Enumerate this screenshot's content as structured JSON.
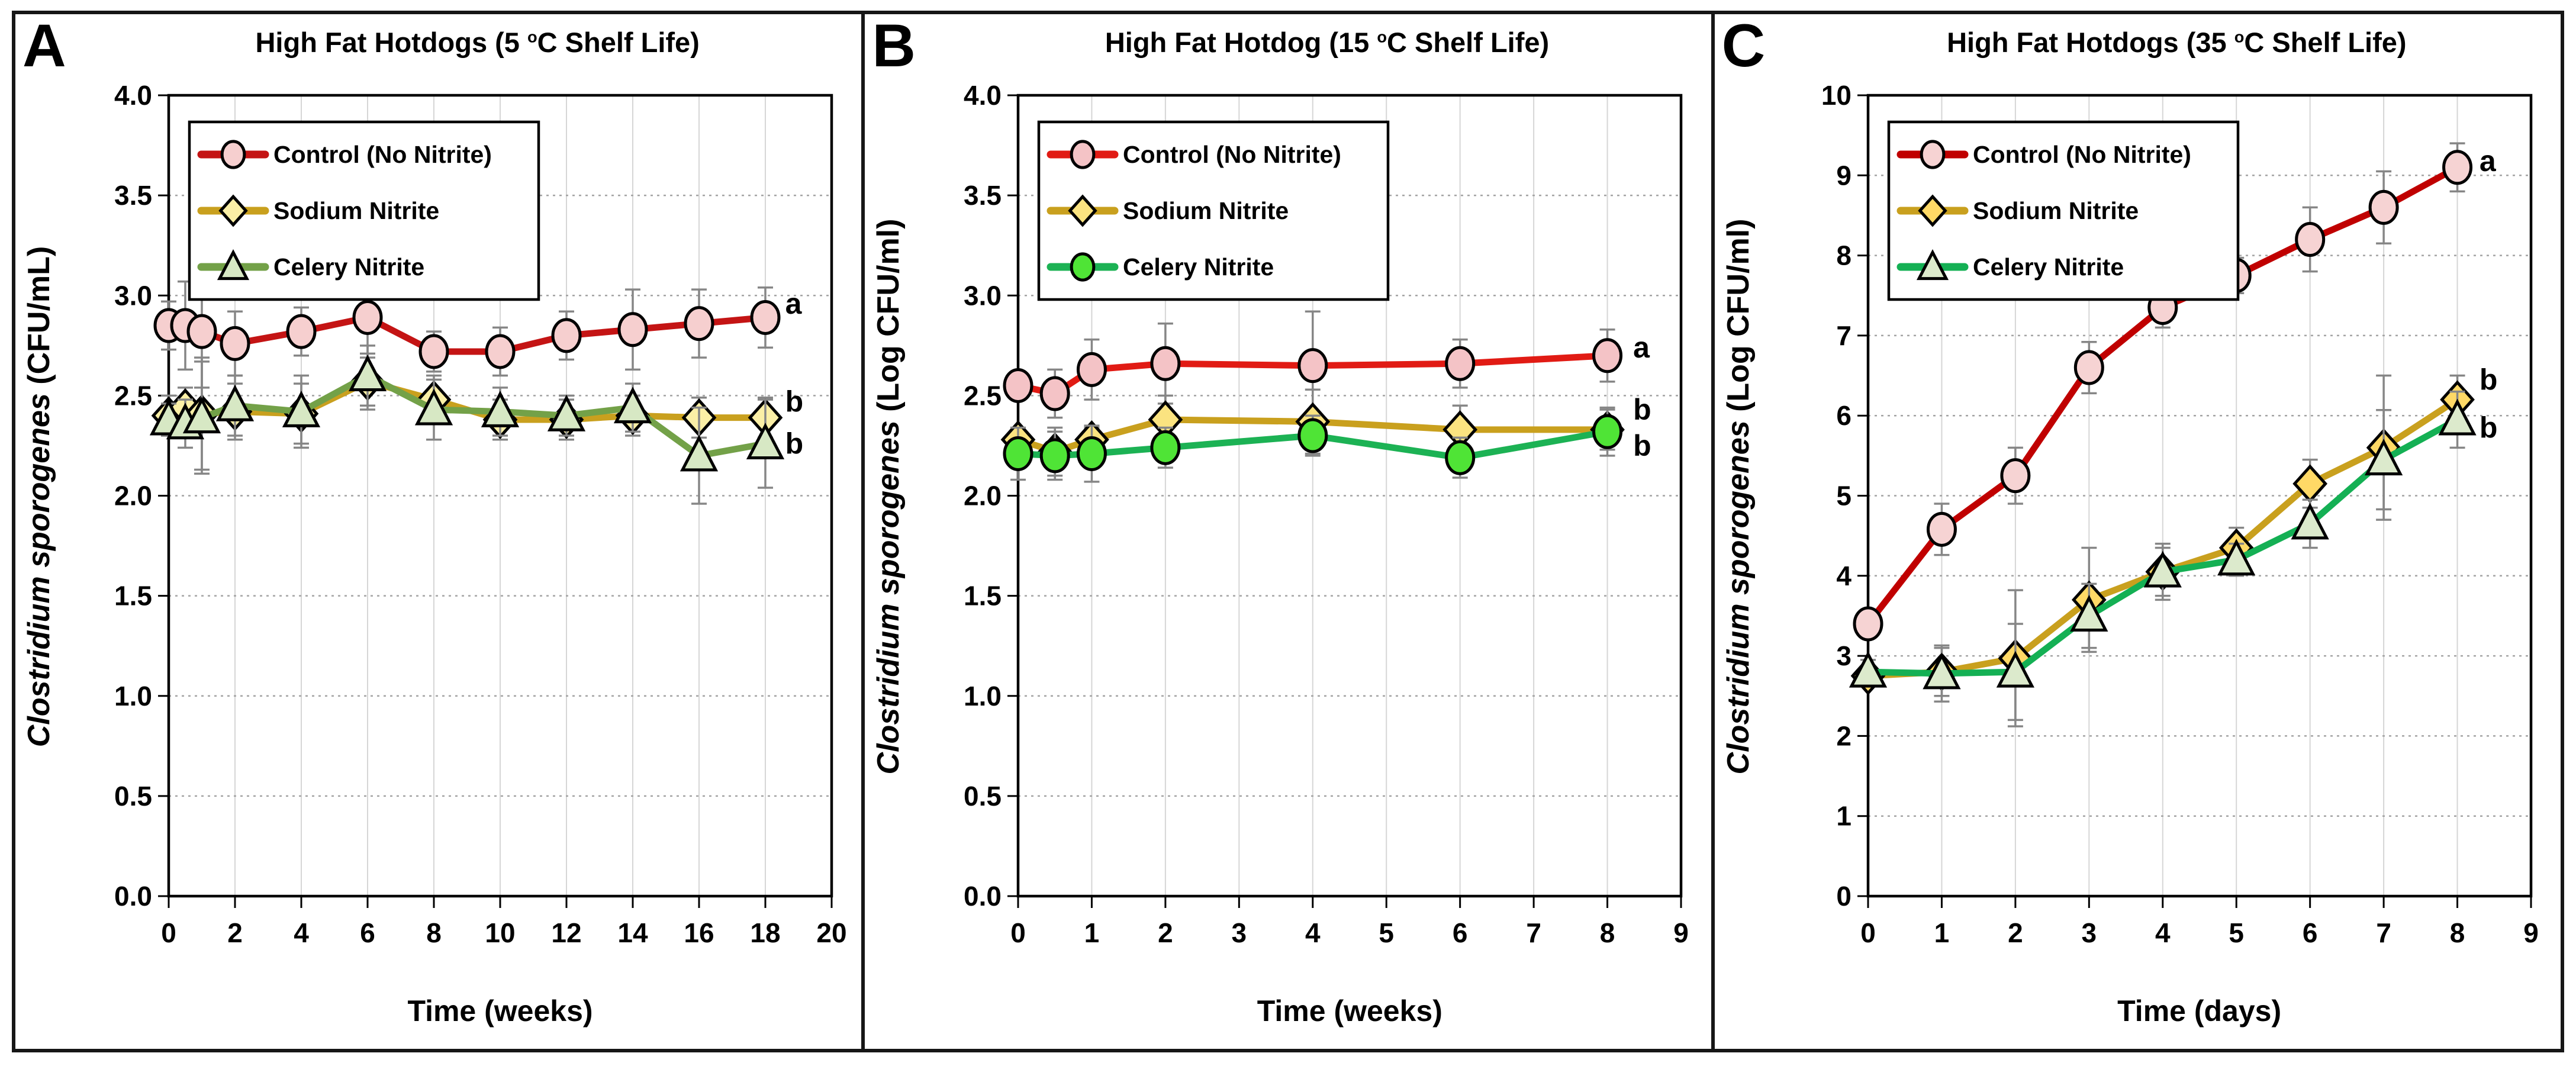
{
  "figure": {
    "background": "#ffffff",
    "border_color": "#161616",
    "error_bar_color": "#868686",
    "gridline_vertical_color": "#d6d6d6",
    "gridline_horizontal_color": "#a3a3a3"
  },
  "chart_data": [
    {
      "type": "line",
      "panel": "A",
      "title": "High Fat Hotdogs (5 °C Shelf Life)",
      "title_parts": [
        "High Fat Hotdogs (5 ",
        "o",
        "C Shelf Life)"
      ],
      "xlabel": "Time (weeks)",
      "ylabel": "Clostridium sporogenes (CFU/mL)",
      "ylabel_italic": "Clostridium sporogenes",
      "ylabel_unit": " (CFU/mL)",
      "xlim": [
        0,
        20
      ],
      "ylim": [
        0,
        4
      ],
      "xticks": [
        0,
        2,
        4,
        6,
        8,
        10,
        12,
        14,
        16,
        18,
        20
      ],
      "yticks": [
        0.0,
        0.5,
        1.0,
        1.5,
        2.0,
        2.5,
        3.0,
        3.5,
        4.0
      ],
      "ytick_decimals": 1,
      "grid": {
        "x": "solid",
        "y": "dashed"
      },
      "legend_position": "upper-left",
      "x": [
        0,
        0.5,
        1,
        2,
        4,
        6,
        8,
        10,
        12,
        14,
        16,
        18
      ],
      "series": [
        {
          "name": "Control (No Nitrite)",
          "marker": "circle",
          "line_color": "#C41414",
          "marker_fill": "#F6CFCF",
          "values": [
            2.85,
            2.85,
            2.82,
            2.76,
            2.82,
            2.89,
            2.72,
            2.72,
            2.8,
            2.83,
            2.86,
            2.89
          ],
          "errors": [
            0.12,
            0.22,
            0.28,
            0.16,
            0.12,
            0.2,
            0.1,
            0.12,
            0.12,
            0.2,
            0.17,
            0.15
          ]
        },
        {
          "name": "Sodium Nitrite",
          "marker": "diamond",
          "line_color": "#C9A01E",
          "marker_fill": "#FBEFA6",
          "values": [
            2.4,
            2.44,
            2.41,
            2.42,
            2.41,
            2.57,
            2.48,
            2.38,
            2.38,
            2.4,
            2.39,
            2.39
          ],
          "errors": [
            0.1,
            0.1,
            0.28,
            0.14,
            0.15,
            0.14,
            0.12,
            0.1,
            0.1,
            0.1,
            0.1,
            0.1
          ]
        },
        {
          "name": "Celery Nitrite",
          "marker": "triangle",
          "line_color": "#73A148",
          "marker_fill": "#D7E8C4",
          "values": [
            2.38,
            2.36,
            2.39,
            2.45,
            2.42,
            2.6,
            2.43,
            2.42,
            2.4,
            2.44,
            2.2,
            2.26
          ],
          "errors": [
            0.08,
            0.12,
            0.28,
            0.15,
            0.18,
            0.15,
            0.15,
            0.12,
            0.1,
            0.12,
            0.24,
            0.22
          ]
        }
      ],
      "annotations": [
        {
          "text": "a",
          "x": 18.6,
          "y": 2.96
        },
        {
          "text": "b",
          "x": 18.6,
          "y": 2.47
        },
        {
          "text": "b",
          "x": 18.6,
          "y": 2.26
        }
      ]
    },
    {
      "type": "line",
      "panel": "B",
      "title": "High Fat Hotdog (15 °C Shelf Life)",
      "title_parts": [
        "High Fat Hotdog (15 ",
        "o",
        "C Shelf Life)"
      ],
      "xlabel": "Time (weeks)",
      "ylabel": "Clostridium sporogenes (Log CFU/ml)",
      "ylabel_italic": "Clostridium sporogenes",
      "ylabel_unit": " (Log CFU/ml)",
      "xlim": [
        0,
        9
      ],
      "ylim": [
        0,
        4
      ],
      "xticks": [
        0,
        1,
        2,
        3,
        4,
        5,
        6,
        7,
        8,
        9
      ],
      "yticks": [
        0.0,
        0.5,
        1.0,
        1.5,
        2.0,
        2.5,
        3.0,
        3.5,
        4.0
      ],
      "ytick_decimals": 1,
      "grid": {
        "x": "solid",
        "y": "dashed"
      },
      "legend_position": "upper-left",
      "x": [
        0,
        0.5,
        1,
        2,
        4,
        6,
        8
      ],
      "series": [
        {
          "name": "Control (No Nitrite)",
          "marker": "circle",
          "line_color": "#E11B14",
          "marker_fill": "#F4C3C6",
          "values": [
            2.55,
            2.51,
            2.63,
            2.66,
            2.65,
            2.66,
            2.7
          ],
          "errors": [
            0.07,
            0.12,
            0.15,
            0.2,
            0.27,
            0.12,
            0.13
          ]
        },
        {
          "name": "Sodium Nitrite",
          "marker": "diamond",
          "line_color": "#C9A01E",
          "marker_fill": "#FBE380",
          "values": [
            2.28,
            2.22,
            2.28,
            2.38,
            2.37,
            2.33,
            2.33
          ],
          "errors": [
            0.05,
            0.12,
            0.06,
            0.12,
            0.16,
            0.12,
            0.1
          ]
        },
        {
          "name": "Celery Nitrite",
          "marker": "circle",
          "line_color": "#1CB254",
          "marker_fill": "#4FE436",
          "values": [
            2.21,
            2.2,
            2.21,
            2.24,
            2.3,
            2.19,
            2.32
          ],
          "errors": [
            0.13,
            0.12,
            0.14,
            0.1,
            0.1,
            0.1,
            0.12
          ]
        }
      ],
      "annotations": [
        {
          "text": "a",
          "x": 8.35,
          "y": 2.74
        },
        {
          "text": "b",
          "x": 8.35,
          "y": 2.43
        },
        {
          "text": "b",
          "x": 8.35,
          "y": 2.25
        }
      ]
    },
    {
      "type": "line",
      "panel": "C",
      "title": "High Fat Hotdogs (35 °C Shelf Life)",
      "title_parts": [
        "High Fat Hotdogs (35 ",
        "o",
        "C Shelf Life)"
      ],
      "xlabel": "Time (days)",
      "ylabel": "Clostridium sporogenes (Log CFU/ml)",
      "ylabel_italic": "Clostridium sporogenes",
      "ylabel_unit": " (Log CFU/ml)",
      "xlim": [
        0,
        9
      ],
      "ylim": [
        0,
        10
      ],
      "xticks": [
        0,
        1,
        2,
        3,
        4,
        5,
        6,
        7,
        8,
        9
      ],
      "yticks": [
        0,
        1,
        2,
        3,
        4,
        5,
        6,
        7,
        8,
        9,
        10
      ],
      "ytick_decimals": 0,
      "grid": {
        "x": "solid",
        "y": "dashed"
      },
      "legend_position": "upper-left",
      "x": [
        0,
        1,
        2,
        3,
        4,
        5,
        6,
        7,
        8
      ],
      "series": [
        {
          "name": "Control (No Nitrite)",
          "marker": "circle",
          "line_color": "#C00000",
          "marker_fill": "#F6D3D3",
          "values": [
            3.4,
            4.58,
            5.25,
            6.6,
            7.35,
            7.75,
            8.2,
            8.6,
            9.1
          ],
          "errors": [
            0.15,
            0.32,
            0.35,
            0.32,
            0.25,
            0.22,
            0.4,
            0.45,
            0.3
          ]
        },
        {
          "name": "Sodium Nitrite",
          "marker": "diamond",
          "line_color": "#C9A01E",
          "marker_fill": "#FFD966",
          "values": [
            2.75,
            2.8,
            2.97,
            3.7,
            4.05,
            4.35,
            5.15,
            5.6,
            6.2
          ],
          "errors": [
            0.1,
            0.3,
            0.85,
            0.65,
            0.3,
            0.25,
            0.3,
            0.9,
            0.3
          ]
        },
        {
          "name": "Celery Nitrite",
          "marker": "triangle",
          "line_color": "#14B054",
          "marker_fill": "#DCEACC",
          "values": [
            2.8,
            2.78,
            2.8,
            3.5,
            4.05,
            4.2,
            4.65,
            5.45,
            5.95
          ],
          "errors": [
            0.15,
            0.35,
            0.6,
            0.4,
            0.35,
            0.2,
            0.3,
            0.62,
            0.35
          ]
        }
      ],
      "annotations": [
        {
          "text": "a",
          "x": 8.3,
          "y": 9.18
        },
        {
          "text": "b",
          "x": 8.3,
          "y": 6.45
        },
        {
          "text": "b",
          "x": 8.3,
          "y": 5.85
        }
      ]
    }
  ]
}
